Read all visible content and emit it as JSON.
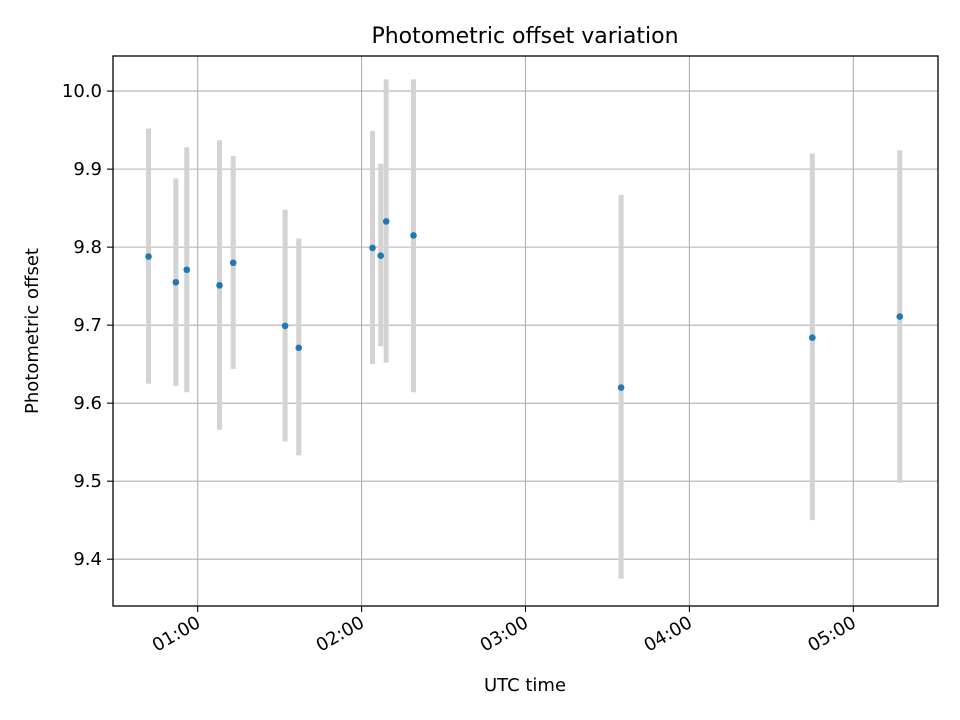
{
  "chart_data": {
    "type": "scatter",
    "title": "Photometric offset variation",
    "xlabel": "UTC time",
    "ylabel": "Photometric offset",
    "xlim": [
      "00:29",
      "05:31"
    ],
    "ylim": [
      9.34,
      10.045
    ],
    "xticks": [
      "01:00",
      "02:00",
      "03:00",
      "04:00",
      "05:00"
    ],
    "yticks": [
      "9.4",
      "9.5",
      "9.6",
      "9.7",
      "9.8",
      "9.9",
      "10.0"
    ],
    "grid": true,
    "colors": {
      "point": "#1f77b4",
      "errorbar": "#d3d3d3",
      "grid": "#b0b0b0"
    },
    "series": [
      {
        "points": [
          {
            "x": "00:42",
            "y": 9.788,
            "ylow": 9.625,
            "yhigh": 9.952
          },
          {
            "x": "00:52",
            "y": 9.755,
            "ylow": 9.622,
            "yhigh": 9.888
          },
          {
            "x": "00:56",
            "y": 9.771,
            "ylow": 9.614,
            "yhigh": 9.928
          },
          {
            "x": "01:08",
            "y": 9.751,
            "ylow": 9.566,
            "yhigh": 9.937
          },
          {
            "x": "01:13",
            "y": 9.78,
            "ylow": 9.644,
            "yhigh": 9.917
          },
          {
            "x": "01:32",
            "y": 9.699,
            "ylow": 9.551,
            "yhigh": 9.848
          },
          {
            "x": "01:37",
            "y": 9.671,
            "ylow": 9.533,
            "yhigh": 9.811
          },
          {
            "x": "02:04",
            "y": 9.799,
            "ylow": 9.65,
            "yhigh": 9.949
          },
          {
            "x": "02:07",
            "y": 9.789,
            "ylow": 9.673,
            "yhigh": 9.907
          },
          {
            "x": "02:09",
            "y": 9.833,
            "ylow": 9.652,
            "yhigh": 10.015
          },
          {
            "x": "02:19",
            "y": 9.815,
            "ylow": 9.614,
            "yhigh": 10.015
          },
          {
            "x": "03:35",
            "y": 9.62,
            "ylow": 9.375,
            "yhigh": 9.867
          },
          {
            "x": "04:45",
            "y": 9.684,
            "ylow": 9.45,
            "yhigh": 9.92
          },
          {
            "x": "05:17",
            "y": 9.711,
            "ylow": 9.498,
            "yhigh": 9.924
          }
        ]
      }
    ]
  }
}
